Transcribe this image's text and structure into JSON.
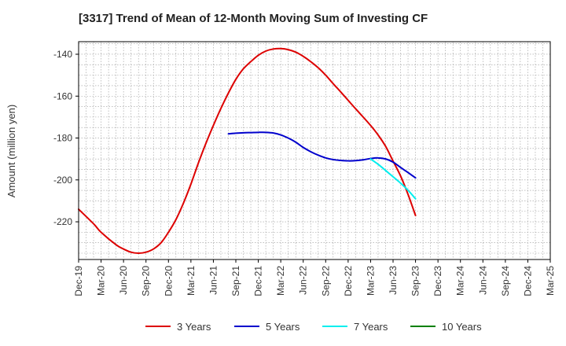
{
  "chart_data": {
    "type": "line",
    "title": "[3317]  Trend of Mean of 12-Month Moving Sum of Investing CF",
    "xlabel": "",
    "ylabel": "Amount (million yen)",
    "ylim": [
      -238,
      -134
    ],
    "yticks": [
      -140,
      -160,
      -180,
      -200,
      -220
    ],
    "grid": true,
    "categories": [
      "Dec-19",
      "Mar-20",
      "Jun-20",
      "Sep-20",
      "Dec-20",
      "Mar-21",
      "Jun-21",
      "Sep-21",
      "Dec-21",
      "Mar-22",
      "Jun-22",
      "Sep-22",
      "Dec-22",
      "Mar-23",
      "Jun-23",
      "Sep-23",
      "Dec-23",
      "Mar-24",
      "Jun-24",
      "Sep-24",
      "Dec-24",
      "Mar-25"
    ],
    "series": [
      {
        "name": "3 Years",
        "color": "#dd0000",
        "points": [
          [
            0,
            -214
          ],
          [
            0.67,
            -221
          ],
          [
            1,
            -225
          ],
          [
            1.67,
            -231
          ],
          [
            2,
            -233
          ],
          [
            2.33,
            -234.5
          ],
          [
            2.67,
            -235
          ],
          [
            3,
            -234.5
          ],
          [
            3.33,
            -233
          ],
          [
            3.67,
            -230
          ],
          [
            4,
            -225
          ],
          [
            4.33,
            -219
          ],
          [
            4.67,
            -211
          ],
          [
            5,
            -202
          ],
          [
            5.33,
            -192
          ],
          [
            5.67,
            -182.5
          ],
          [
            6,
            -174
          ],
          [
            6.33,
            -166
          ],
          [
            6.67,
            -158.5
          ],
          [
            7,
            -152
          ],
          [
            7.33,
            -147
          ],
          [
            7.67,
            -143.5
          ],
          [
            8,
            -140.5
          ],
          [
            8.33,
            -138.5
          ],
          [
            8.67,
            -137.5
          ],
          [
            9,
            -137.3
          ],
          [
            9.33,
            -137.8
          ],
          [
            9.67,
            -139
          ],
          [
            10,
            -141
          ],
          [
            10.33,
            -143.5
          ],
          [
            10.67,
            -146.5
          ],
          [
            11,
            -150
          ],
          [
            11.33,
            -154
          ],
          [
            11.67,
            -158
          ],
          [
            12,
            -162
          ],
          [
            12.33,
            -166
          ],
          [
            12.67,
            -170
          ],
          [
            13,
            -174
          ],
          [
            13.33,
            -178.5
          ],
          [
            13.67,
            -184
          ],
          [
            14,
            -191
          ],
          [
            14.33,
            -198
          ],
          [
            14.67,
            -207
          ],
          [
            15,
            -217
          ]
        ]
      },
      {
        "name": "5 Years",
        "color": "#0000cc",
        "points": [
          [
            6.67,
            -178
          ],
          [
            7,
            -177.7
          ],
          [
            7.33,
            -177.5
          ],
          [
            7.67,
            -177.4
          ],
          [
            8,
            -177.3
          ],
          [
            8.33,
            -177.3
          ],
          [
            8.67,
            -177.6
          ],
          [
            9,
            -178.5
          ],
          [
            9.33,
            -180
          ],
          [
            9.67,
            -182
          ],
          [
            10,
            -184.5
          ],
          [
            10.33,
            -186.5
          ],
          [
            10.67,
            -188.2
          ],
          [
            11,
            -189.5
          ],
          [
            11.33,
            -190.3
          ],
          [
            11.67,
            -190.7
          ],
          [
            12,
            -190.9
          ],
          [
            12.33,
            -190.8
          ],
          [
            12.67,
            -190.4
          ],
          [
            13,
            -189.8
          ],
          [
            13.33,
            -189.5
          ],
          [
            13.67,
            -190
          ],
          [
            14,
            -191.5
          ],
          [
            14.33,
            -194
          ],
          [
            14.67,
            -196.5
          ],
          [
            15,
            -199
          ]
        ]
      },
      {
        "name": "7 Years",
        "color": "#00eeee",
        "points": [
          [
            13,
            -190
          ],
          [
            13.33,
            -192.5
          ],
          [
            13.67,
            -195.5
          ],
          [
            14,
            -198.5
          ],
          [
            14.33,
            -201.5
          ],
          [
            14.67,
            -205
          ],
          [
            15,
            -209
          ]
        ]
      },
      {
        "name": "10 Years",
        "color": "#008000",
        "points": []
      }
    ]
  }
}
